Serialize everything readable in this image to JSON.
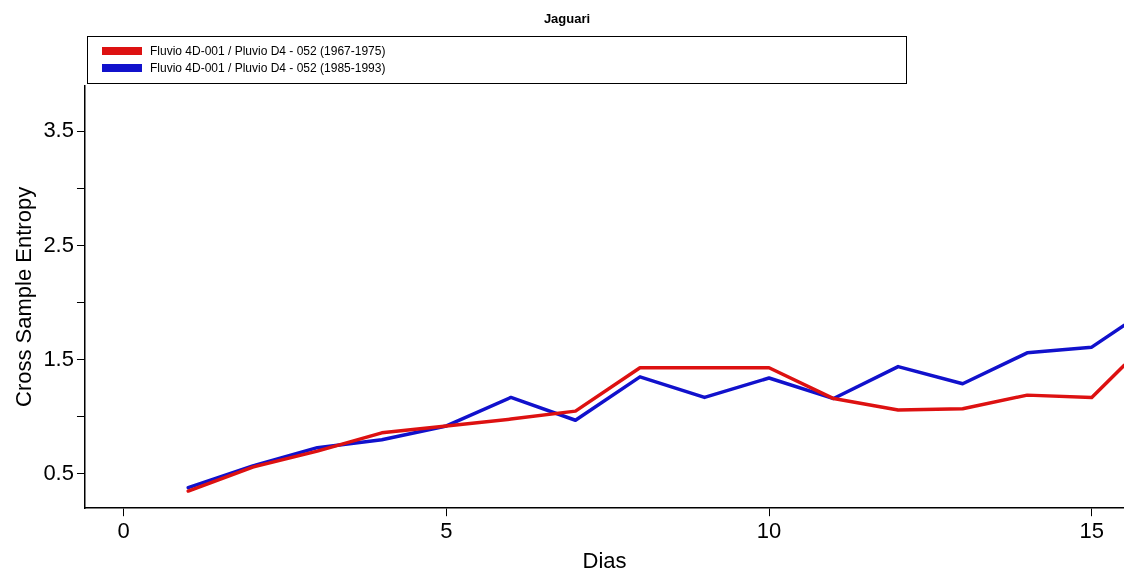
{
  "chart_data": {
    "type": "line",
    "title": "Jaguari",
    "xlabel": "Dias",
    "ylabel": "Cross Sample Entropy",
    "x": [
      1,
      2,
      3,
      4,
      5,
      6,
      7,
      8,
      9,
      10,
      11,
      12,
      13,
      14,
      15,
      15.5
    ],
    "series": [
      {
        "name": "Fluvio 4D-001 / Pluvio D4 - 052 (1967-1975)",
        "color": "#dd1111",
        "values": [
          0.35,
          0.56,
          0.7,
          0.86,
          0.92,
          0.98,
          1.05,
          1.43,
          1.43,
          1.43,
          1.16,
          1.06,
          1.07,
          1.19,
          1.17,
          1.45
        ]
      },
      {
        "name": "Fluvio 4D-001 / Pluvio D4 - 052 (1985-1993)",
        "color": "#1111cc",
        "values": [
          0.38,
          0.57,
          0.73,
          0.8,
          0.92,
          1.17,
          0.97,
          1.35,
          1.17,
          1.34,
          1.16,
          1.44,
          1.29,
          1.56,
          1.61,
          1.8
        ]
      }
    ],
    "xlim": [
      -0.6,
      15.5
    ],
    "xticks": [
      0,
      5,
      10,
      15
    ],
    "ylim": [
      0.2,
      3.9
    ],
    "yticks": [
      0.5,
      {
        "value": 1,
        "label": null
      },
      1.5,
      {
        "value": 2,
        "label": null
      },
      2.5,
      {
        "value": 3,
        "label": null
      },
      3.5
    ],
    "grid": false,
    "legend": "top left",
    "marker": "none",
    "line_style": "solid"
  }
}
